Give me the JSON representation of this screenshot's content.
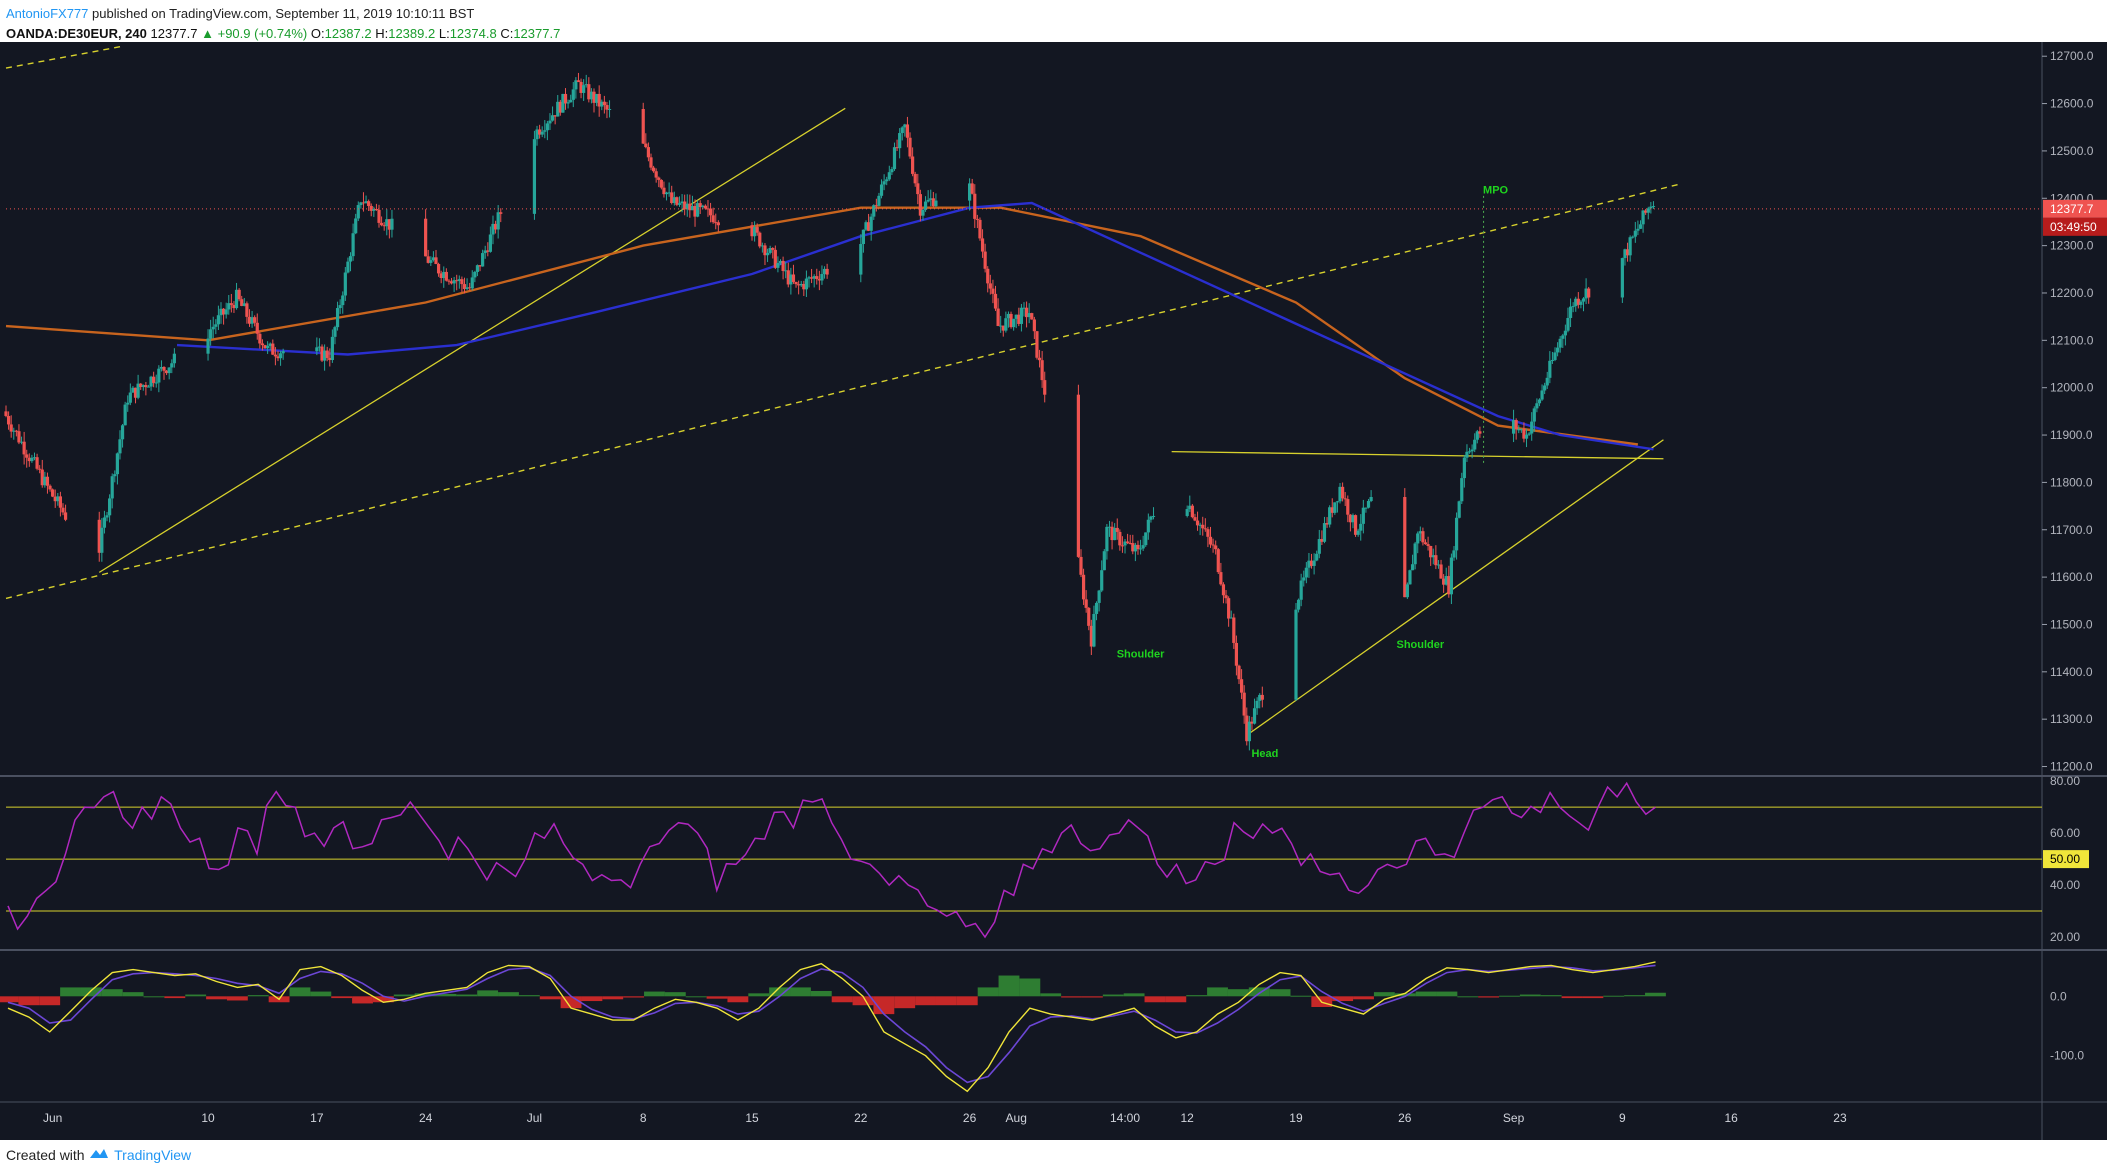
{
  "header": {
    "author": "AntonioFX777",
    "published": " published on TradingView.com, September 11, 2019 10:10:11 BST",
    "symbol": "OANDA:DE30EUR, 240",
    "last": "12377.7",
    "change": "▲ +90.9 (+0.74%)",
    "o_label": "O:",
    "o": "12387.2",
    "h_label": "H:",
    "h": "12389.2",
    "l_label": "L:",
    "l": "12374.8",
    "c_label": "C:",
    "c": "12377.7"
  },
  "footer": {
    "created": "Created with",
    "brand": "TradingView"
  },
  "colors": {
    "background": "#131722",
    "bull": "#26a69a",
    "bear": "#ef5350",
    "ma_long": "#c8641e",
    "ma_short": "#2a2fd0",
    "trend": "#d7d12d",
    "rsi": "#b028c0",
    "macd": "#f0e53a",
    "signal": "#6c47d6",
    "hist_pos": "#2e7d32",
    "hist_neg": "#c62828",
    "pattern_label": "#1fd41f",
    "price_tag": "#ef5350"
  },
  "chart_data": [
    {
      "type": "candlestick",
      "title": "OANDA:DE30EUR, 240",
      "ylim": [
        11180,
        12730
      ],
      "y_ticks": [
        "11200.0",
        "11300.0",
        "11400.0",
        "11500.0",
        "11600.0",
        "11700.0",
        "11800.0",
        "11900.0",
        "12000.0",
        "12100.0",
        "12200.0",
        "12300.0",
        "12400.0",
        "12500.0",
        "12600.0",
        "12700.0"
      ],
      "x_ticks": [
        "Jun",
        "10",
        "17",
        "24",
        "Jul",
        "8",
        "15",
        "22",
        "26",
        "Aug",
        "14:00",
        "12",
        "19",
        "26",
        "Sep",
        "9",
        "16",
        "23"
      ],
      "price_path": [
        {
          "x": "May 28",
          "y": 11950
        },
        {
          "x": "May 31",
          "y": 11780
        },
        {
          "x": "Jun 3",
          "y": 11630
        },
        {
          "x": "Jun 5",
          "y": 11980
        },
        {
          "x": "Jun 10",
          "y": 12110
        },
        {
          "x": "Jun 12",
          "y": 12190
        },
        {
          "x": "Jun 14",
          "y": 12080
        },
        {
          "x": "Jun 18",
          "y": 12070
        },
        {
          "x": "Jun 20",
          "y": 12400
        },
        {
          "x": "Jun 25",
          "y": 12250
        },
        {
          "x": "Jun 27",
          "y": 12210
        },
        {
          "x": "Jul 1",
          "y": 12530
        },
        {
          "x": "Jul 4",
          "y": 12640
        },
        {
          "x": "Jul 8",
          "y": 12520
        },
        {
          "x": "Jul 10",
          "y": 12390
        },
        {
          "x": "Jul 15",
          "y": 12340
        },
        {
          "x": "Jul 18",
          "y": 12210
        },
        {
          "x": "Jul 22",
          "y": 12290
        },
        {
          "x": "Jul 25",
          "y": 12550
        },
        {
          "x": "Jul 26",
          "y": 12380
        },
        {
          "x": "Jul 29",
          "y": 12450
        },
        {
          "x": "Jul 31",
          "y": 12130
        },
        {
          "x": "Aug 2",
          "y": 12160
        },
        {
          "x": "Aug 5",
          "y": 11660
        },
        {
          "x": "Aug 6",
          "y": 11470
        },
        {
          "x": "Aug 7",
          "y": 11700
        },
        {
          "x": "Aug 9",
          "y": 11650
        },
        {
          "x": "Aug 11",
          "y": 11830
        },
        {
          "x": "Aug 14",
          "y": 11650
        },
        {
          "x": "Aug 15",
          "y": 11500
        },
        {
          "x": "Aug 16",
          "y": 11270
        },
        {
          "x": "Aug 20",
          "y": 11620
        },
        {
          "x": "Aug 22",
          "y": 11790
        },
        {
          "x": "Aug 23",
          "y": 11700
        },
        {
          "x": "Aug 25",
          "y": 11820
        },
        {
          "x": "Aug 26",
          "y": 11510
        },
        {
          "x": "Aug 27",
          "y": 11700
        },
        {
          "x": "Aug 29",
          "y": 11580
        },
        {
          "x": "Aug 30",
          "y": 11860
        },
        {
          "x": "Sep 1",
          "y": 11950
        },
        {
          "x": "Sep 3",
          "y": 11900
        },
        {
          "x": "Sep 6",
          "y": 12180
        },
        {
          "x": "Sep 9",
          "y": 12260
        },
        {
          "x": "Sep 11",
          "y": 12390
        }
      ],
      "ma_long": [
        {
          "x": "May 28",
          "y": 12130
        },
        {
          "x": "Jun 10",
          "y": 12100
        },
        {
          "x": "Jun 24",
          "y": 12180
        },
        {
          "x": "Jul 8",
          "y": 12300
        },
        {
          "x": "Jul 22",
          "y": 12380
        },
        {
          "x": "Jul 31",
          "y": 12380
        },
        {
          "x": "Aug 9",
          "y": 12320
        },
        {
          "x": "Aug 19",
          "y": 12180
        },
        {
          "x": "Aug 26",
          "y": 12020
        },
        {
          "x": "Sep 1",
          "y": 11920
        },
        {
          "x": "Sep 10",
          "y": 11880
        }
      ],
      "ma_short": [
        {
          "x": "Jun 8",
          "y": 12090
        },
        {
          "x": "Jun 19",
          "y": 12070
        },
        {
          "x": "Jun 26",
          "y": 12090
        },
        {
          "x": "Jul 5",
          "y": 12160
        },
        {
          "x": "Jul 15",
          "y": 12240
        },
        {
          "x": "Jul 22",
          "y": 12320
        },
        {
          "x": "Jul 29",
          "y": 12380
        },
        {
          "x": "Aug 2",
          "y": 12390
        },
        {
          "x": "Sep 1",
          "y": 11940
        },
        {
          "x": "Sep 5",
          "y": 11900
        },
        {
          "x": "Sep 11",
          "y": 11870
        }
      ],
      "last_price": "12377.7",
      "countdown": "03:49:50",
      "annotations": [
        {
          "text": "Shoulder",
          "x": "Aug 9",
          "y": 11430
        },
        {
          "text": "Head",
          "x": "Aug 17",
          "y": 11220
        },
        {
          "text": "Shoulder",
          "x": "Aug 27",
          "y": 11450
        },
        {
          "text": "MPO",
          "x": "Sep 2",
          "y": 12410
        }
      ]
    },
    {
      "type": "line",
      "title": "RSI",
      "ylim": [
        15,
        82
      ],
      "y_ticks": [
        "20.00",
        "40.00",
        "60.00",
        "80.00"
      ],
      "levels": [
        30,
        50,
        70
      ],
      "level_tag": "50.00",
      "values": [
        32,
        28,
        38,
        52,
        70,
        74,
        66,
        70,
        74,
        62,
        58,
        46,
        62,
        52,
        76,
        70,
        60,
        62,
        54,
        56,
        66,
        72,
        62,
        50,
        54,
        42,
        46,
        50,
        58,
        56,
        48,
        44,
        42,
        48,
        56,
        64,
        60,
        38,
        48,
        58,
        68,
        62,
        72,
        64,
        50,
        48,
        40,
        40,
        32,
        28,
        24,
        20,
        38,
        48,
        54,
        60,
        56,
        54,
        60,
        62,
        48,
        48,
        42,
        48,
        64,
        58,
        60,
        56,
        52,
        44,
        38,
        40,
        48,
        48,
        58,
        52,
        60,
        70,
        74,
        66,
        68,
        70,
        64,
        70,
        74,
        72,
        70
      ]
    },
    {
      "type": "line",
      "title": "MACD",
      "ylim": [
        -178,
        78
      ],
      "y_ticks": [
        "0.0",
        "-100.0"
      ],
      "macd": [
        -20,
        -35,
        -60,
        -25,
        10,
        40,
        45,
        40,
        35,
        38,
        25,
        15,
        20,
        -5,
        45,
        50,
        35,
        10,
        -10,
        -5,
        5,
        10,
        15,
        40,
        52,
        50,
        30,
        -20,
        -30,
        -40,
        -40,
        -20,
        -5,
        -10,
        -20,
        -40,
        -20,
        15,
        45,
        55,
        30,
        0,
        -60,
        -80,
        -100,
        -135,
        -160,
        -120,
        -60,
        -20,
        -30,
        -35,
        -40,
        -30,
        -20,
        -50,
        -70,
        -60,
        -30,
        -10,
        20,
        40,
        35,
        -10,
        -20,
        -30,
        -5,
        5,
        30,
        48,
        45,
        40,
        45,
        50,
        52,
        45,
        40,
        45,
        50,
        58
      ],
      "signal": [
        -10,
        -20,
        -45,
        -40,
        -5,
        28,
        38,
        40,
        38,
        35,
        30,
        22,
        18,
        5,
        30,
        42,
        38,
        22,
        0,
        -8,
        0,
        6,
        12,
        30,
        45,
        48,
        35,
        0,
        -22,
        -35,
        -38,
        -28,
        -12,
        -10,
        -16,
        -30,
        -25,
        0,
        30,
        46,
        40,
        15,
        -30,
        -60,
        -85,
        -120,
        -145,
        -135,
        -95,
        -50,
        -35,
        -33,
        -38,
        -33,
        -25,
        -40,
        -60,
        -62,
        -45,
        -22,
        5,
        28,
        34,
        8,
        -12,
        -25,
        -12,
        0,
        22,
        40,
        45,
        42,
        44,
        47,
        50,
        48,
        43,
        44,
        48,
        52
      ],
      "hist": [
        -10,
        -15,
        -15,
        15,
        15,
        12,
        7,
        0,
        -3,
        3,
        -5,
        -7,
        2,
        -10,
        15,
        8,
        -3,
        -12,
        -10,
        3,
        5,
        4,
        3,
        10,
        7,
        2,
        -5,
        -20,
        -8,
        -5,
        -2,
        8,
        7,
        0,
        -4,
        -10,
        5,
        15,
        15,
        9,
        -10,
        -15,
        -30,
        -20,
        -15,
        -15,
        -15,
        15,
        35,
        30,
        5,
        -2,
        -2,
        3,
        5,
        -10,
        -10,
        2,
        15,
        12,
        15,
        12,
        1,
        -18,
        -8,
        -5,
        7,
        5,
        8,
        8,
        0,
        -2,
        1,
        3,
        2,
        -3,
        -3,
        1,
        2,
        6
      ]
    }
  ]
}
